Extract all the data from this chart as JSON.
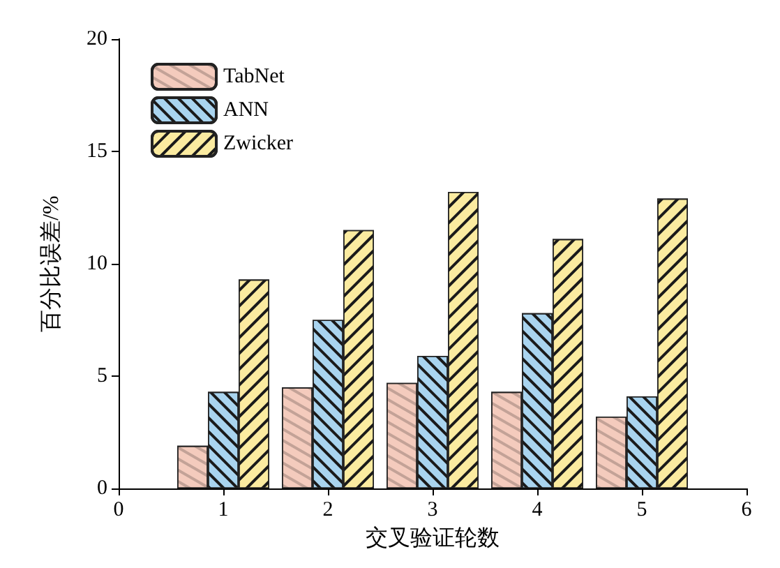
{
  "chart_data": {
    "type": "bar",
    "xlabel": "交叉验证轮数",
    "ylabel": "百分比误差/%",
    "x": [
      1,
      2,
      3,
      4,
      5
    ],
    "series": [
      {
        "name": "TabNet",
        "color": "#f4cbbd",
        "values": [
          1.9,
          4.5,
          4.7,
          4.3,
          3.2
        ]
      },
      {
        "name": "ANN",
        "color": "#a9d4ef",
        "values": [
          4.3,
          7.5,
          5.9,
          7.8,
          4.1
        ]
      },
      {
        "name": "Zwicker",
        "color": "#fbeba0",
        "values": [
          9.3,
          11.5,
          13.2,
          11.1,
          12.9
        ]
      }
    ],
    "xlim": [
      0,
      6
    ],
    "xticks": [
      0,
      1,
      2,
      3,
      4,
      5,
      6
    ],
    "ylim": [
      0,
      20
    ],
    "yticks": [
      0,
      5,
      10,
      15,
      20
    ],
    "grid": false,
    "legend": "top left"
  }
}
